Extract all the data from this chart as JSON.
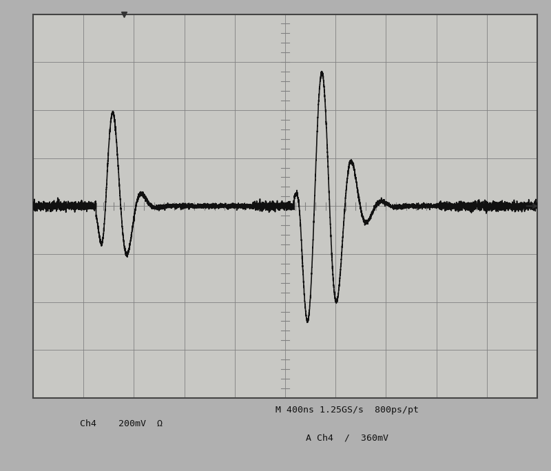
{
  "bg_outer": "#b0b0b0",
  "bg_screen": "#c8c8c4",
  "grid_major_color": "#808080",
  "grid_minor_color": "#909090",
  "trace_color": "#111111",
  "text_color": "#111111",
  "border_color": "#444444",
  "label1": "Ch4    200mV  Ω",
  "label2": "M 400ns 1.25GS/s  800ps/pt",
  "label3": "A Ch4  /  360mV",
  "num_hdiv": 10,
  "num_vdiv": 8,
  "xlim": [
    -5.0,
    5.0
  ],
  "ylim": [
    -4.0,
    4.0
  ],
  "trigger_x": -3.2,
  "noise_amp": 0.04,
  "trace_lw": 1.2
}
